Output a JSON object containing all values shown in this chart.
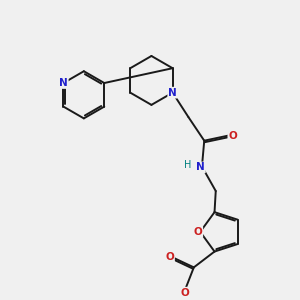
{
  "bg_color": "#f0f0f0",
  "bond_color": "#1a1a1a",
  "nitrogen_color": "#2020cc",
  "oxygen_color": "#cc2020",
  "nh_color": "#008080",
  "lw": 1.4,
  "dbo": 0.045,
  "xlim": [
    0,
    10
  ],
  "ylim": [
    0,
    10
  ]
}
